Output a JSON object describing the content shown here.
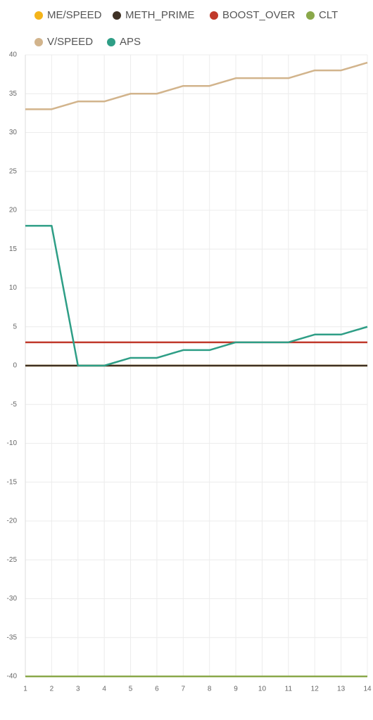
{
  "chart_data": {
    "type": "line",
    "x": [
      1,
      2,
      3,
      4,
      5,
      6,
      7,
      8,
      9,
      10,
      11,
      12,
      13,
      14
    ],
    "series": [
      {
        "name": "ME/SPEED",
        "color": "#f4b41a",
        "values": [
          0,
          0,
          0,
          0,
          0,
          0,
          0,
          0,
          0,
          0,
          0,
          0,
          0,
          0
        ]
      },
      {
        "name": "METH_PRIME",
        "color": "#3e3125",
        "values": [
          0,
          0,
          0,
          0,
          0,
          0,
          0,
          0,
          0,
          0,
          0,
          0,
          0,
          0
        ]
      },
      {
        "name": "BOOST_OVER",
        "color": "#c0392b",
        "values": [
          3,
          3,
          3,
          3,
          3,
          3,
          3,
          3,
          3,
          3,
          3,
          3,
          3,
          3
        ]
      },
      {
        "name": "CLT",
        "color": "#8aa84a",
        "values": [
          -40,
          -40,
          -40,
          -40,
          -40,
          -40,
          -40,
          -40,
          -40,
          -40,
          -40,
          -40,
          -40,
          -40
        ]
      },
      {
        "name": "V/SPEED",
        "color": "#d2b48c",
        "values": [
          33,
          33,
          34,
          34,
          35,
          35,
          36,
          36,
          37,
          37,
          37,
          38,
          38,
          39
        ]
      },
      {
        "name": "APS",
        "color": "#2e9e86",
        "values": [
          18,
          18,
          0,
          0,
          1,
          1,
          2,
          2,
          3,
          3,
          3,
          4,
          4,
          5
        ]
      }
    ],
    "xlim": [
      1,
      14
    ],
    "xticks": [
      1,
      2,
      3,
      4,
      5,
      6,
      7,
      8,
      9,
      10,
      11,
      12,
      13,
      14
    ],
    "ylim": [
      -40,
      40
    ],
    "yticks": [
      -40,
      -35,
      -30,
      -25,
      -20,
      -15,
      -10,
      -5,
      0,
      5,
      10,
      15,
      20,
      25,
      30,
      35,
      40
    ],
    "grid": true
  }
}
